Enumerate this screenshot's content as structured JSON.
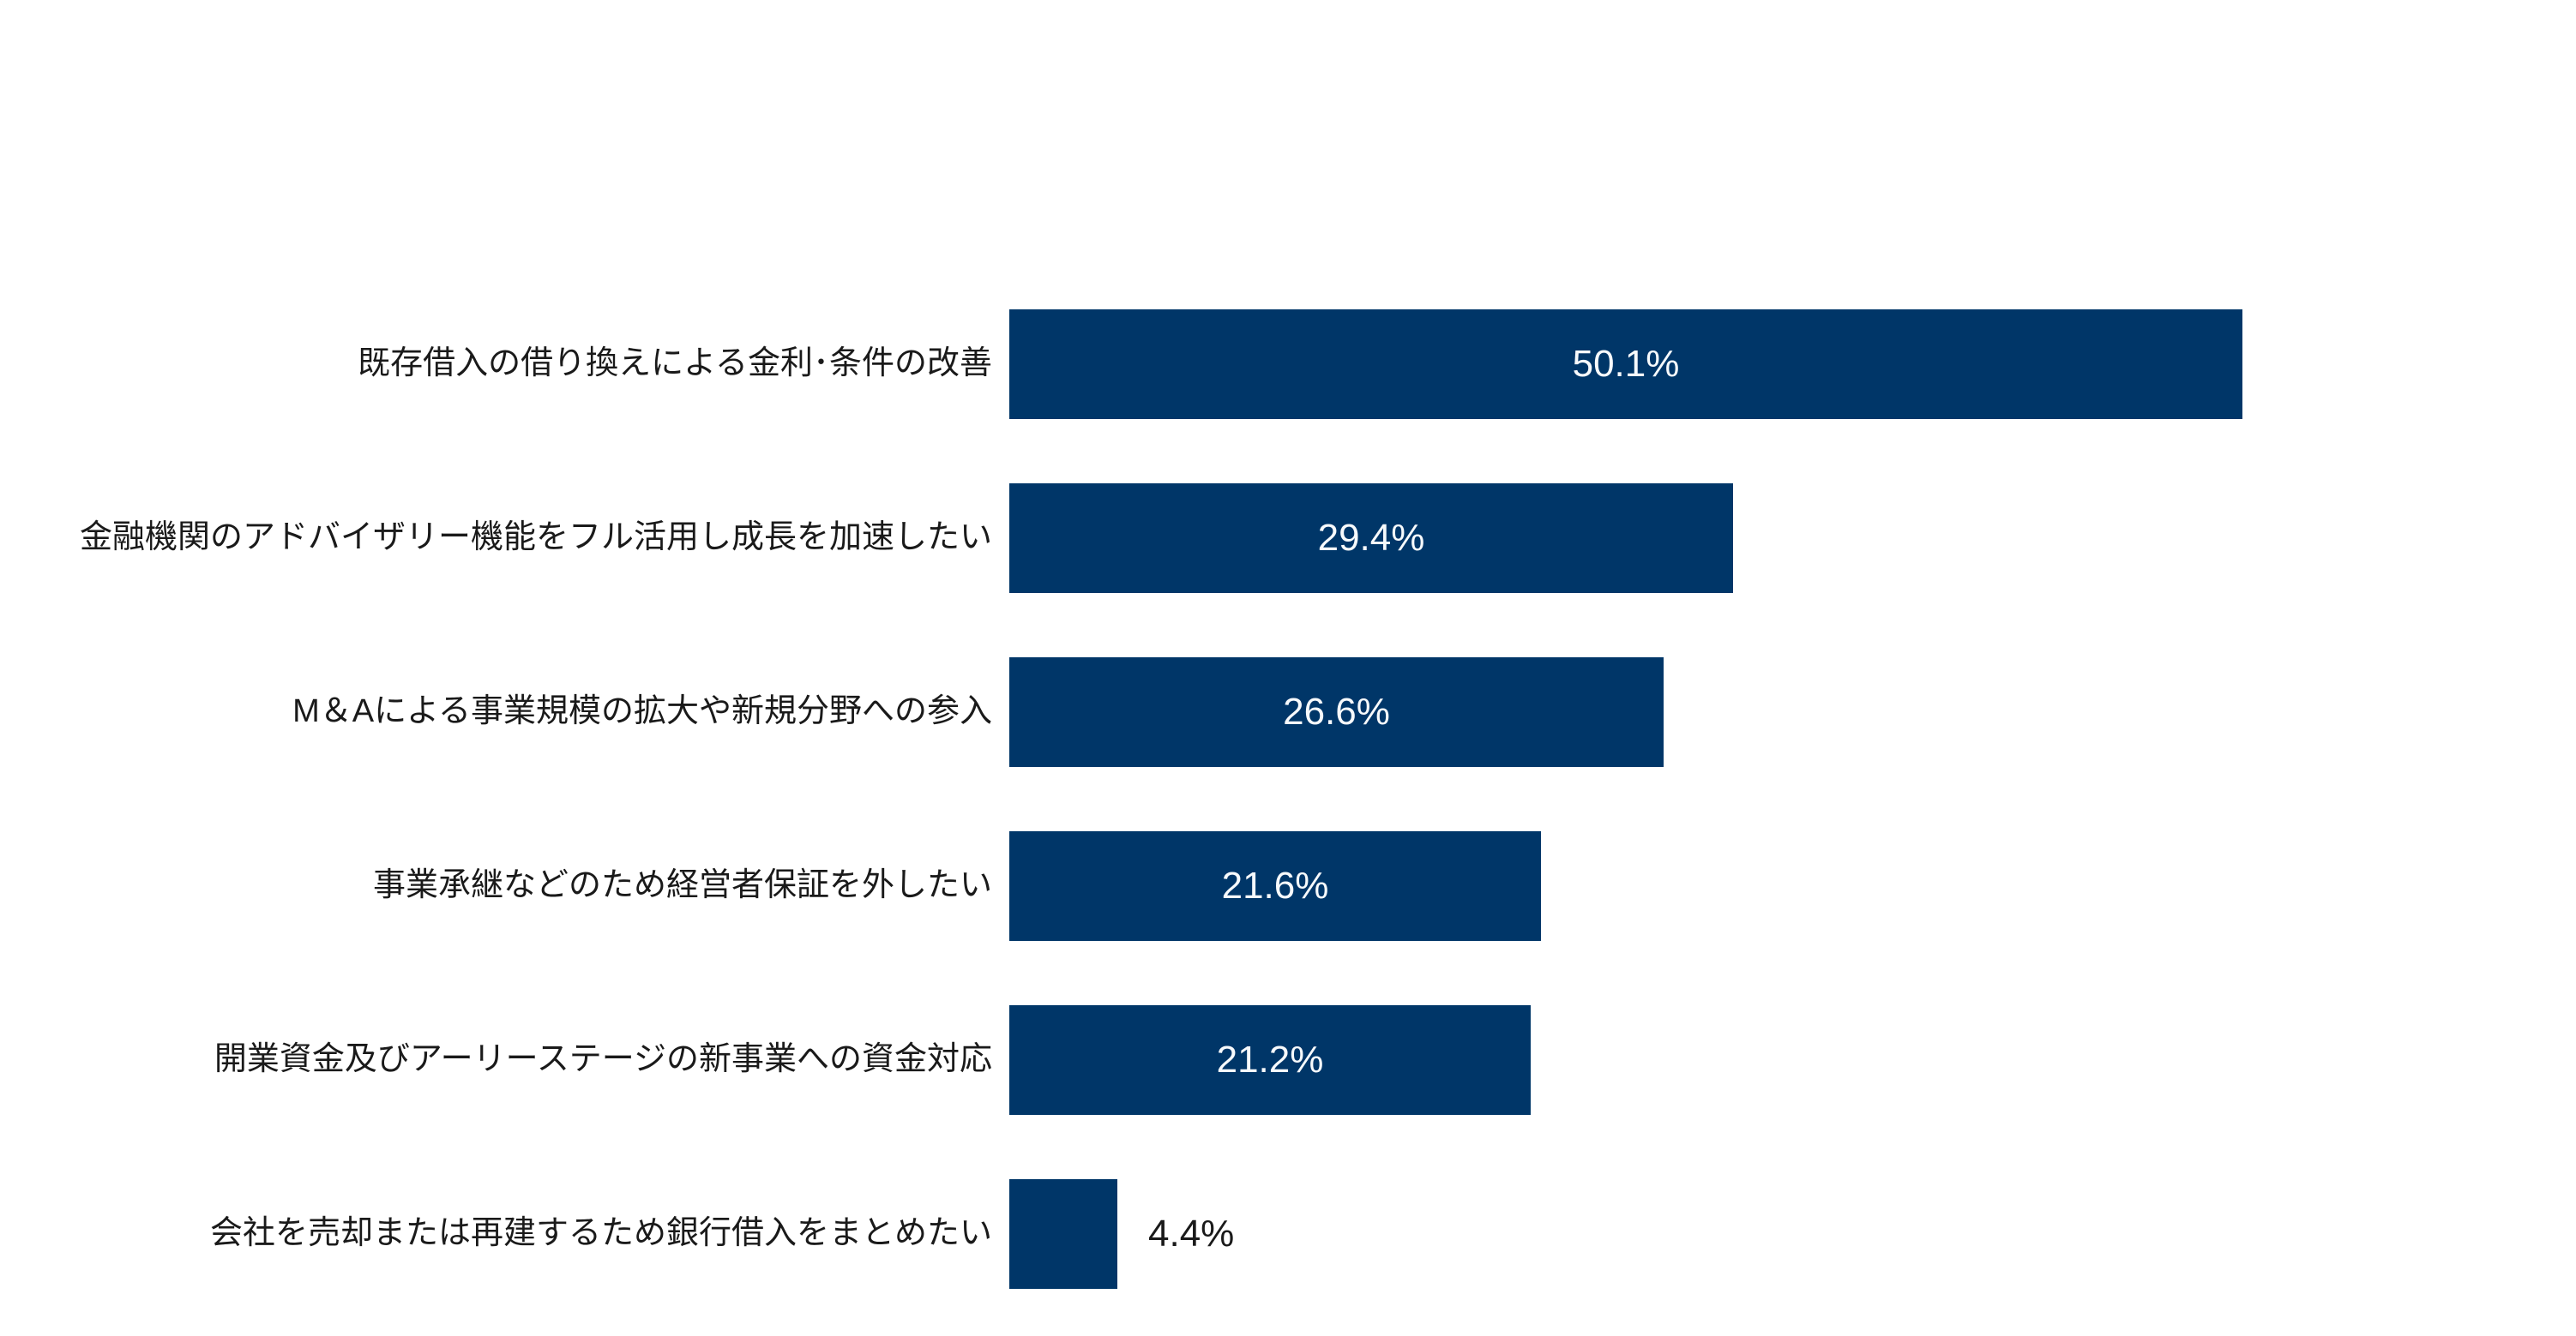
{
  "chart_data": {
    "type": "bar",
    "orientation": "horizontal",
    "title": "",
    "xlabel": "",
    "ylabel": "",
    "categories": [
      "既存借入の借り換えによる金利･条件の改善",
      "金融機関のアドバイザリー機能をフル活用し成長を加速したい",
      "M＆Aによる事業規模の拡大や新規分野への参入",
      "事業承継などのため経営者保証を外したい",
      "開業資金及びアーリーステージの新事業への資金対応",
      "会社を売却または再建するため銀行借入をまとめたい"
    ],
    "values": [
      50.1,
      29.4,
      26.6,
      21.6,
      21.2,
      4.4
    ],
    "value_labels": [
      "50.1%",
      "29.4%",
      "26.6%",
      "21.6%",
      "21.2%",
      "4.4%"
    ],
    "xlim": [
      0,
      63.6
    ],
    "grid": false,
    "legend": false,
    "bar_color": "#003668",
    "value_label_color_inside": "#f7fafc",
    "value_label_color_outside": "#1a1a1a",
    "category_label_color": "#1a1a1a",
    "background_color": "#ffffff"
  }
}
